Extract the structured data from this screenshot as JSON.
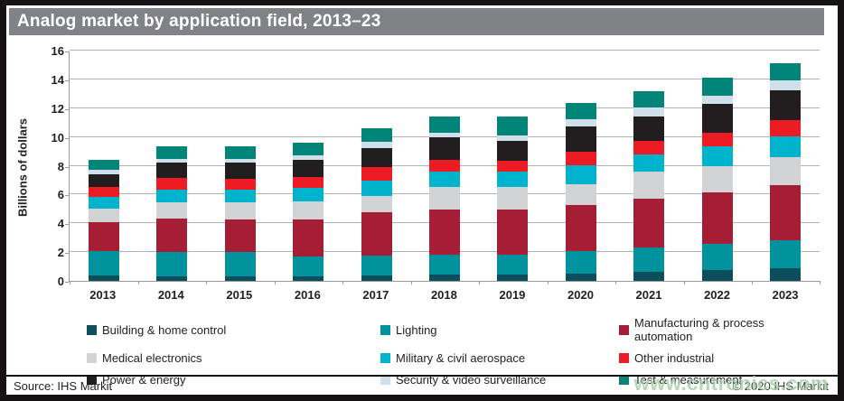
{
  "title": "Analog market by application field, 2013–23",
  "source": "Source: IHS Markit",
  "copyright": "© 2020 IHS Markit",
  "watermark": "www.cntronics.com",
  "colors": {
    "title_bar": "#808285",
    "frame": "#161213",
    "gridline": "#b4b4b4",
    "axis": "#9a9a9a"
  },
  "chart_data": {
    "type": "bar",
    "stacked": true,
    "title": "Analog market by application field, 2013–23",
    "xlabel": "",
    "ylabel": "Billions of dollars",
    "ylim": [
      0,
      16
    ],
    "yticks": [
      0,
      2,
      4,
      6,
      8,
      10,
      12,
      14,
      16
    ],
    "grid": "horizontal",
    "legend_position": "bottom",
    "categories": [
      "2013",
      "2014",
      "2015",
      "2016",
      "2017",
      "2018",
      "2019",
      "2020",
      "2021",
      "2022",
      "2023"
    ],
    "series": [
      {
        "name": "Building & home control",
        "color": "#0c4e5c",
        "values": [
          0.4,
          0.3,
          0.3,
          0.3,
          0.4,
          0.45,
          0.45,
          0.5,
          0.6,
          0.75,
          0.85
        ]
      },
      {
        "name": "Lighting",
        "color": "#00939e",
        "values": [
          1.65,
          1.7,
          1.7,
          1.4,
          1.35,
          1.4,
          1.4,
          1.6,
          1.7,
          1.8,
          2.0
        ]
      },
      {
        "name": "Manufacturing & process automation",
        "color": "#a51e36",
        "values": [
          2.0,
          2.3,
          2.25,
          2.55,
          3.0,
          3.1,
          3.1,
          3.2,
          3.4,
          3.6,
          3.8
        ]
      },
      {
        "name": "Medical electronics",
        "color": "#d1d3d4",
        "values": [
          0.95,
          1.15,
          1.2,
          1.25,
          1.15,
          1.55,
          1.55,
          1.4,
          1.9,
          1.8,
          1.95
        ]
      },
      {
        "name": "Military & civil aerospace",
        "color": "#00b3cc",
        "values": [
          0.85,
          0.9,
          0.9,
          0.95,
          1.05,
          1.1,
          1.1,
          1.35,
          1.2,
          1.4,
          1.45
        ]
      },
      {
        "name": "Other industrial",
        "color": "#ed1c24",
        "values": [
          0.7,
          0.8,
          0.75,
          0.75,
          0.95,
          0.8,
          0.75,
          0.95,
          0.95,
          0.95,
          1.1
        ]
      },
      {
        "name": "Power & energy",
        "color": "#221e1f",
        "values": [
          0.85,
          1.05,
          1.1,
          1.2,
          1.35,
          1.55,
          1.35,
          1.7,
          1.7,
          2.0,
          2.1
        ]
      },
      {
        "name": "Security & video surveillance",
        "color": "#cfe0ea",
        "values": [
          0.3,
          0.25,
          0.25,
          0.3,
          0.4,
          0.35,
          0.4,
          0.55,
          0.6,
          0.55,
          0.7
        ]
      },
      {
        "name": "Test & measurement",
        "color": "#008578",
        "values": [
          0.7,
          0.9,
          0.9,
          0.9,
          0.95,
          1.15,
          1.3,
          1.1,
          1.15,
          1.25,
          1.15
        ]
      }
    ],
    "totals": [
      8.4,
      9.35,
      9.35,
      9.6,
      10.6,
      11.45,
      11.4,
      12.35,
      13.2,
      14.1,
      15.1
    ]
  }
}
